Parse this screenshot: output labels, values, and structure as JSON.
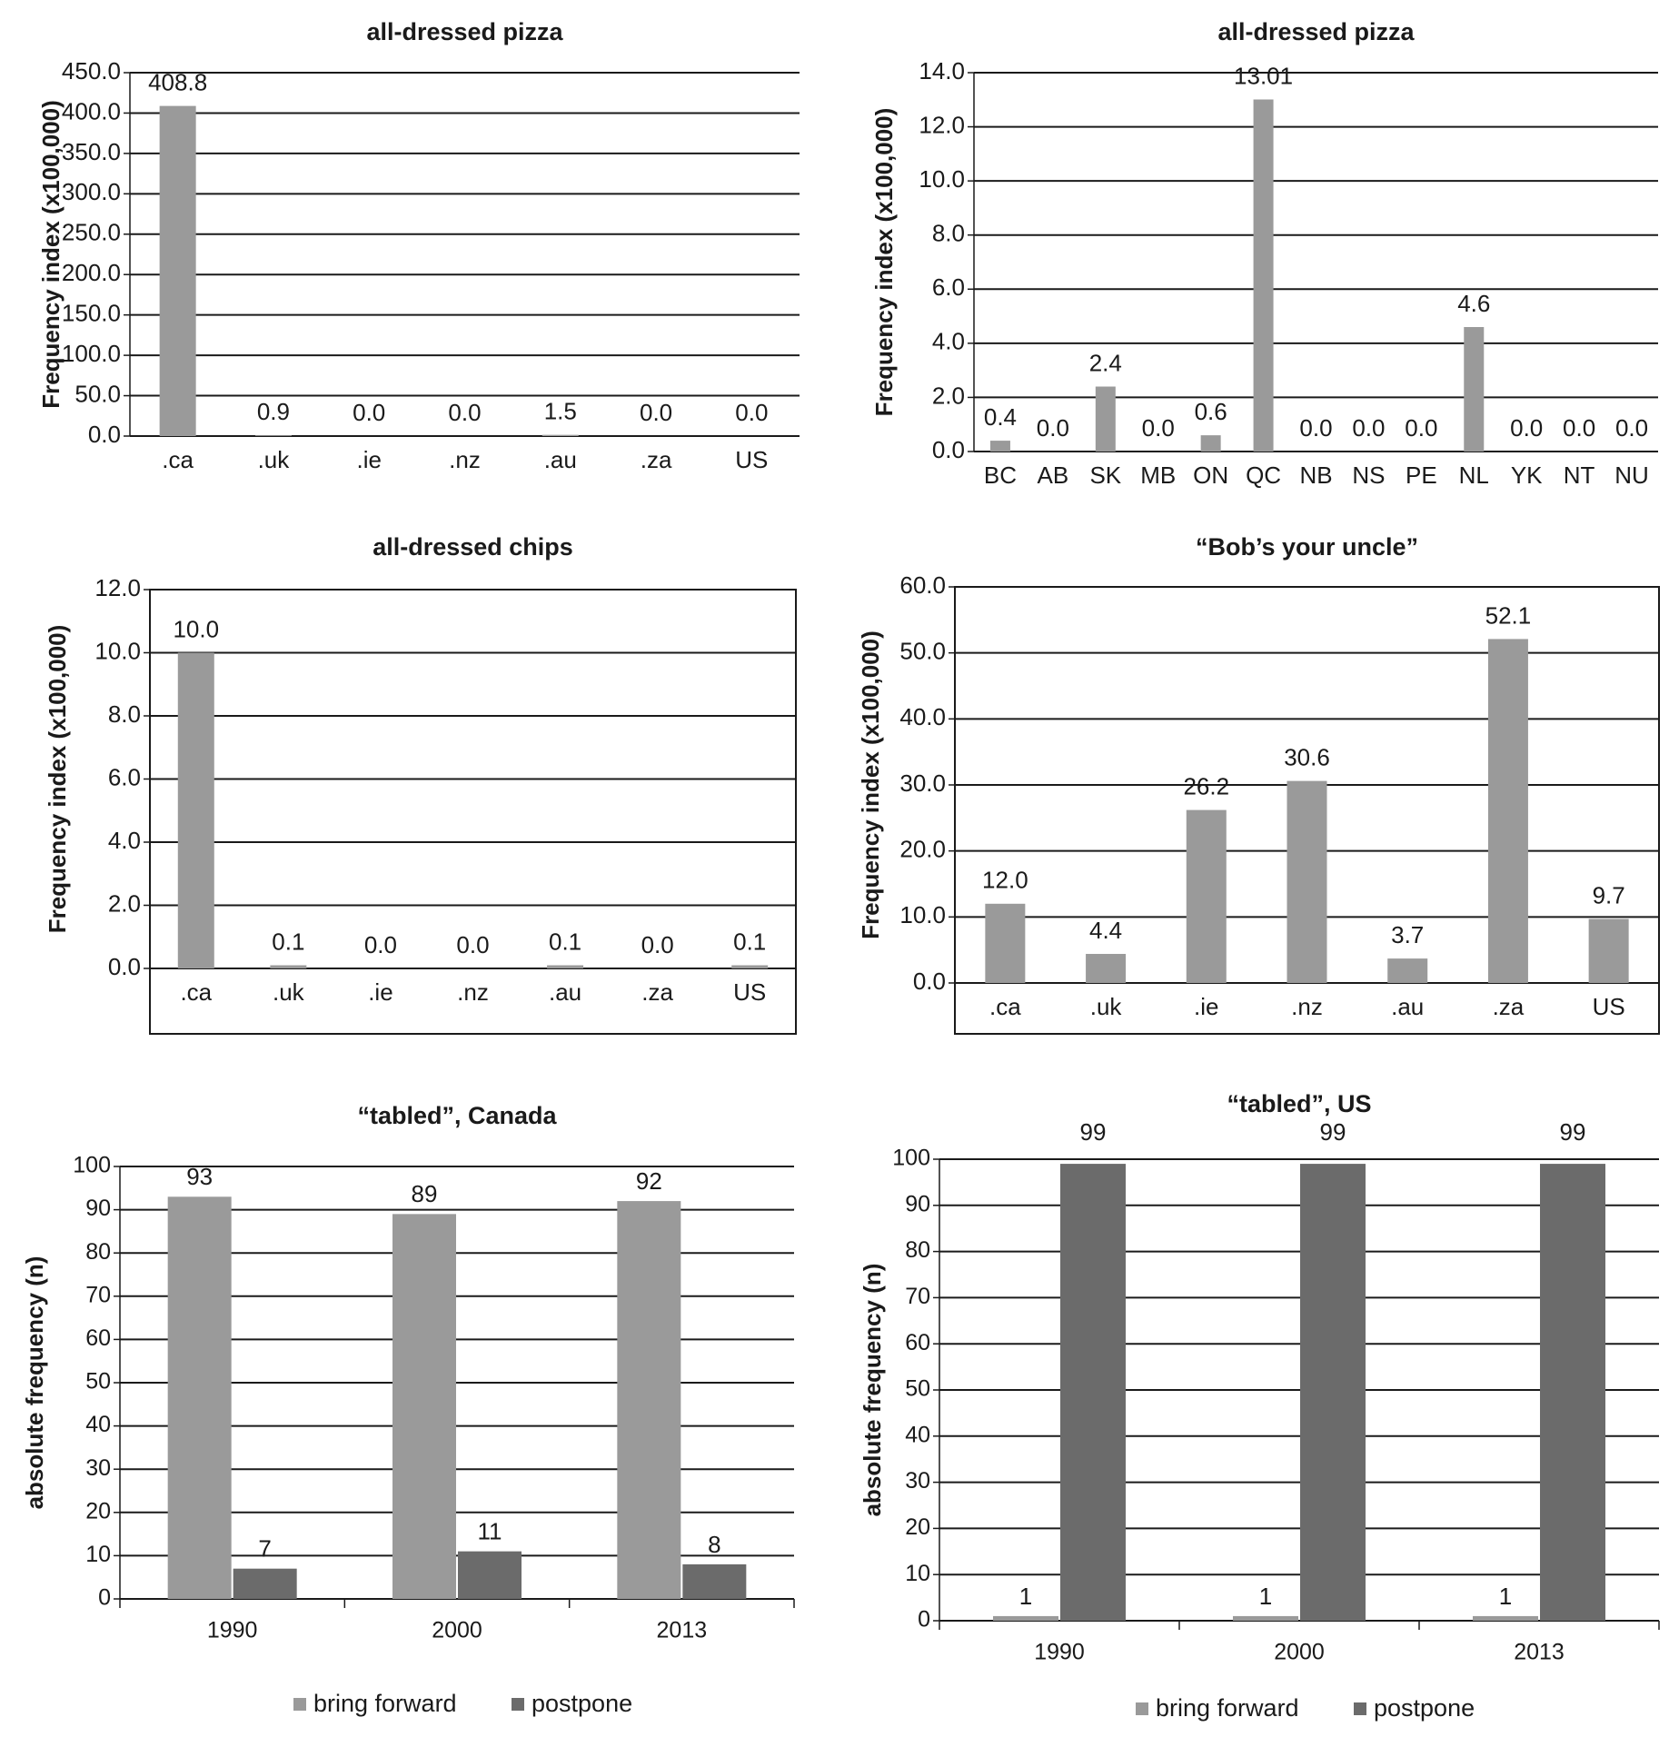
{
  "colors": {
    "bar_light": "#9a9a9a",
    "bar_dark": "#6b6b6b",
    "gridline": "#1a1a1a",
    "text": "#1a1a1a"
  },
  "chart_data": [
    {
      "type": "bar",
      "title": "all-dressed pizza",
      "ylabel": "Frequency index (x100,000)",
      "xlabel": "",
      "categories": [
        ".ca",
        ".uk",
        ".ie",
        ".nz",
        ".au",
        ".za",
        "US"
      ],
      "values": [
        408.8,
        0.9,
        0.0,
        0.0,
        1.5,
        0.0,
        0.0
      ],
      "value_labels": [
        "408.8",
        "0.9",
        "0.0",
        "0.0",
        "1.5",
        "0.0",
        "0.0"
      ],
      "ylim": [
        0,
        450
      ],
      "yticks": [
        "0.0",
        "50.0",
        "100.0",
        "150.0",
        "200.0",
        "250.0",
        "300.0",
        "350.0",
        "400.0",
        "450.0"
      ],
      "grid": true,
      "legend": null
    },
    {
      "type": "bar",
      "title": "all-dressed pizza",
      "ylabel": "Frequency index (x100,000)",
      "xlabel": "",
      "categories": [
        "BC",
        "AB",
        "SK",
        "MB",
        "ON",
        "QC",
        "NB",
        "NS",
        "PE",
        "NL",
        "YK",
        "NT",
        "NU"
      ],
      "values": [
        0.4,
        0.0,
        2.4,
        0.0,
        0.6,
        13.01,
        0.0,
        0.0,
        0.0,
        4.6,
        0.0,
        0.0,
        0.0
      ],
      "value_labels": [
        "0.4",
        "0.0",
        "2.4",
        "0.0",
        "0.6",
        "13.01",
        "0.0",
        "0.0",
        "0.0",
        "4.6",
        "0.0",
        "0.0",
        "0.0"
      ],
      "ylim": [
        0,
        14
      ],
      "yticks": [
        "0.0",
        "2.0",
        "4.0",
        "6.0",
        "8.0",
        "10.0",
        "12.0",
        "14.0"
      ],
      "grid": true,
      "legend": null
    },
    {
      "type": "bar",
      "title": "all-dressed chips",
      "ylabel": "Frequency index (x100,000)",
      "xlabel": "",
      "categories": [
        ".ca",
        ".uk",
        ".ie",
        ".nz",
        ".au",
        ".za",
        "US"
      ],
      "values": [
        10.0,
        0.1,
        0.0,
        0.0,
        0.1,
        0.0,
        0.1
      ],
      "value_labels": [
        "10.0",
        "0.1",
        "0.0",
        "0.0",
        "0.1",
        "0.0",
        "0.1"
      ],
      "ylim": [
        0,
        12
      ],
      "yticks": [
        "0.0",
        "2.0",
        "4.0",
        "6.0",
        "8.0",
        "10.0",
        "12.0"
      ],
      "grid": true,
      "legend": null
    },
    {
      "type": "bar",
      "title": "“Bob’s your uncle”",
      "ylabel": "Frequency index (x100,000)",
      "xlabel": "",
      "categories": [
        ".ca",
        ".uk",
        ".ie",
        ".nz",
        ".au",
        ".za",
        "US"
      ],
      "values": [
        12.0,
        4.4,
        26.2,
        30.6,
        3.7,
        52.1,
        9.7
      ],
      "value_labels": [
        "12.0",
        "4.4",
        "26.2",
        "30.6",
        "3.7",
        "52.1",
        "9.7"
      ],
      "ylim": [
        0,
        60
      ],
      "yticks": [
        "0.0",
        "10.0",
        "20.0",
        "30.0",
        "40.0",
        "50.0",
        "60.0"
      ],
      "grid": true,
      "legend": null
    },
    {
      "type": "bar",
      "title": "“tabled”, Canada",
      "ylabel": "absolute frequency (n)",
      "xlabel": "",
      "categories": [
        "1990",
        "2000",
        "2013"
      ],
      "series": [
        {
          "name": "bring forward",
          "values": [
            93,
            89,
            92
          ],
          "value_labels": [
            "93",
            "89",
            "92"
          ]
        },
        {
          "name": "postpone",
          "values": [
            7,
            11,
            8
          ],
          "value_labels": [
            "7",
            "11",
            "8"
          ]
        }
      ],
      "ylim": [
        0,
        100
      ],
      "yticks": [
        "0",
        "10",
        "20",
        "30",
        "40",
        "50",
        "60",
        "70",
        "80",
        "90",
        "100"
      ],
      "grid": true,
      "legend": "bottom"
    },
    {
      "type": "bar",
      "title": "“tabled”, US",
      "ylabel": "absolute frequency (n)",
      "xlabel": "",
      "categories": [
        "1990",
        "2000",
        "2013"
      ],
      "series": [
        {
          "name": "bring forward",
          "values": [
            1,
            1,
            1
          ],
          "value_labels": [
            "1",
            "1",
            "1"
          ]
        },
        {
          "name": "postpone",
          "values": [
            99,
            99,
            99
          ],
          "value_labels": [
            "99",
            "99",
            "99"
          ]
        }
      ],
      "ylim": [
        0,
        100
      ],
      "yticks": [
        "0",
        "10",
        "20",
        "30",
        "40",
        "50",
        "60",
        "70",
        "80",
        "90",
        "100"
      ],
      "grid": true,
      "legend": "bottom"
    }
  ]
}
